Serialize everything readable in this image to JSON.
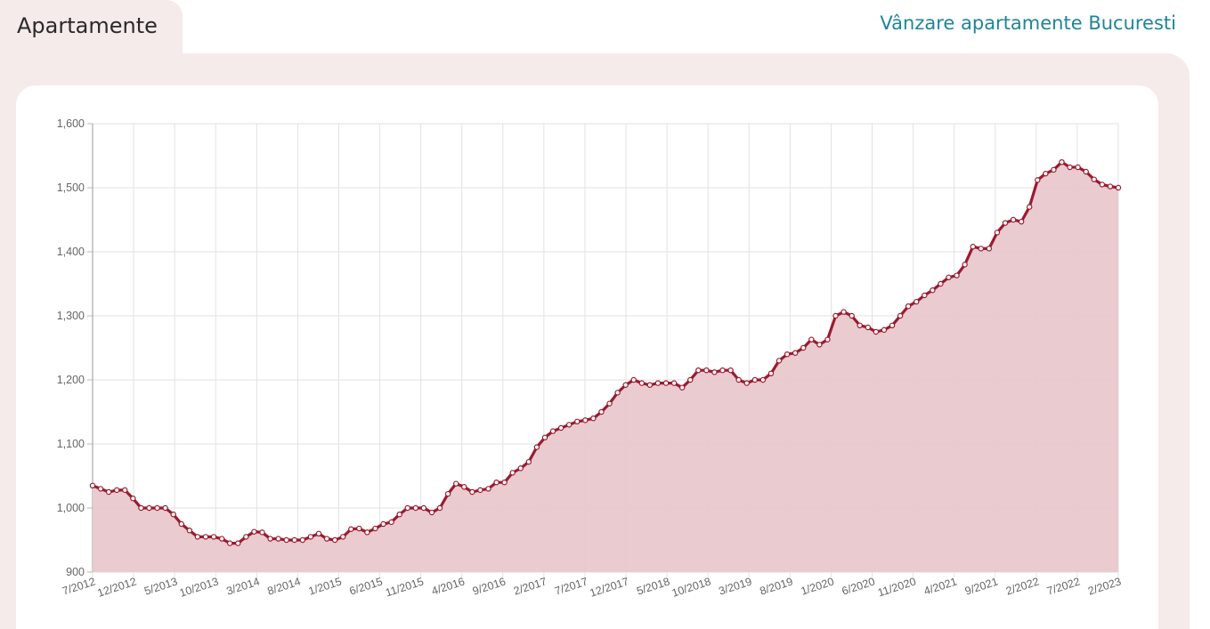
{
  "header": {
    "tab_title": "Apartamente",
    "link_label": "Vânzare apartamente Bucuresti"
  },
  "colors": {
    "line": "#9b1b30",
    "fill": "#e8c8ce",
    "point_fill": "#ffffff",
    "link": "#1f8597"
  },
  "chart_data": {
    "type": "area",
    "title": "",
    "xlabel": "",
    "ylabel": "",
    "ylim": [
      900,
      1600
    ],
    "yticks": [
      "1,600",
      "1,500",
      "1,400",
      "1,300",
      "1,200",
      "1,100",
      "1,000",
      "900"
    ],
    "grid": true,
    "legend": "none",
    "xtick_labels": [
      "7/2012",
      "12/2012",
      "5/2013",
      "10/2013",
      "3/2014",
      "8/2014",
      "1/2015",
      "6/2015",
      "11/2015",
      "4/2016",
      "9/2016",
      "2/2017",
      "7/2017",
      "12/2017",
      "5/2018",
      "10/2018",
      "3/2019",
      "8/2019",
      "1/2020",
      "6/2020",
      "11/2020",
      "4/2021",
      "9/2021",
      "2/2022",
      "7/2022",
      "2/2023"
    ],
    "series": [
      {
        "start": "7/2012",
        "end": "2/2023",
        "values": [
          1035,
          1030,
          1025,
          1028,
          1028,
          1015,
          1000,
          1000,
          1000,
          1000,
          990,
          975,
          965,
          955,
          955,
          955,
          952,
          945,
          945,
          955,
          963,
          962,
          952,
          952,
          950,
          950,
          950,
          955,
          960,
          952,
          950,
          955,
          967,
          968,
          962,
          968,
          975,
          978,
          990,
          1000,
          1000,
          1000,
          993,
          1000,
          1022,
          1038,
          1033,
          1025,
          1028,
          1030,
          1040,
          1040,
          1055,
          1062,
          1072,
          1095,
          1110,
          1120,
          1125,
          1130,
          1135,
          1137,
          1140,
          1150,
          1163,
          1180,
          1192,
          1200,
          1195,
          1192,
          1195,
          1195,
          1195,
          1188,
          1200,
          1215,
          1215,
          1212,
          1215,
          1215,
          1200,
          1195,
          1200,
          1200,
          1210,
          1230,
          1240,
          1242,
          1250,
          1263,
          1255,
          1263,
          1300,
          1306,
          1300,
          1285,
          1282,
          1275,
          1278,
          1285,
          1300,
          1315,
          1322,
          1332,
          1340,
          1350,
          1360,
          1363,
          1380,
          1408,
          1405,
          1405,
          1430,
          1445,
          1450,
          1447,
          1470,
          1512,
          1522,
          1528,
          1540,
          1532,
          1532,
          1525,
          1513,
          1505,
          1502,
          1500
        ]
      }
    ]
  }
}
